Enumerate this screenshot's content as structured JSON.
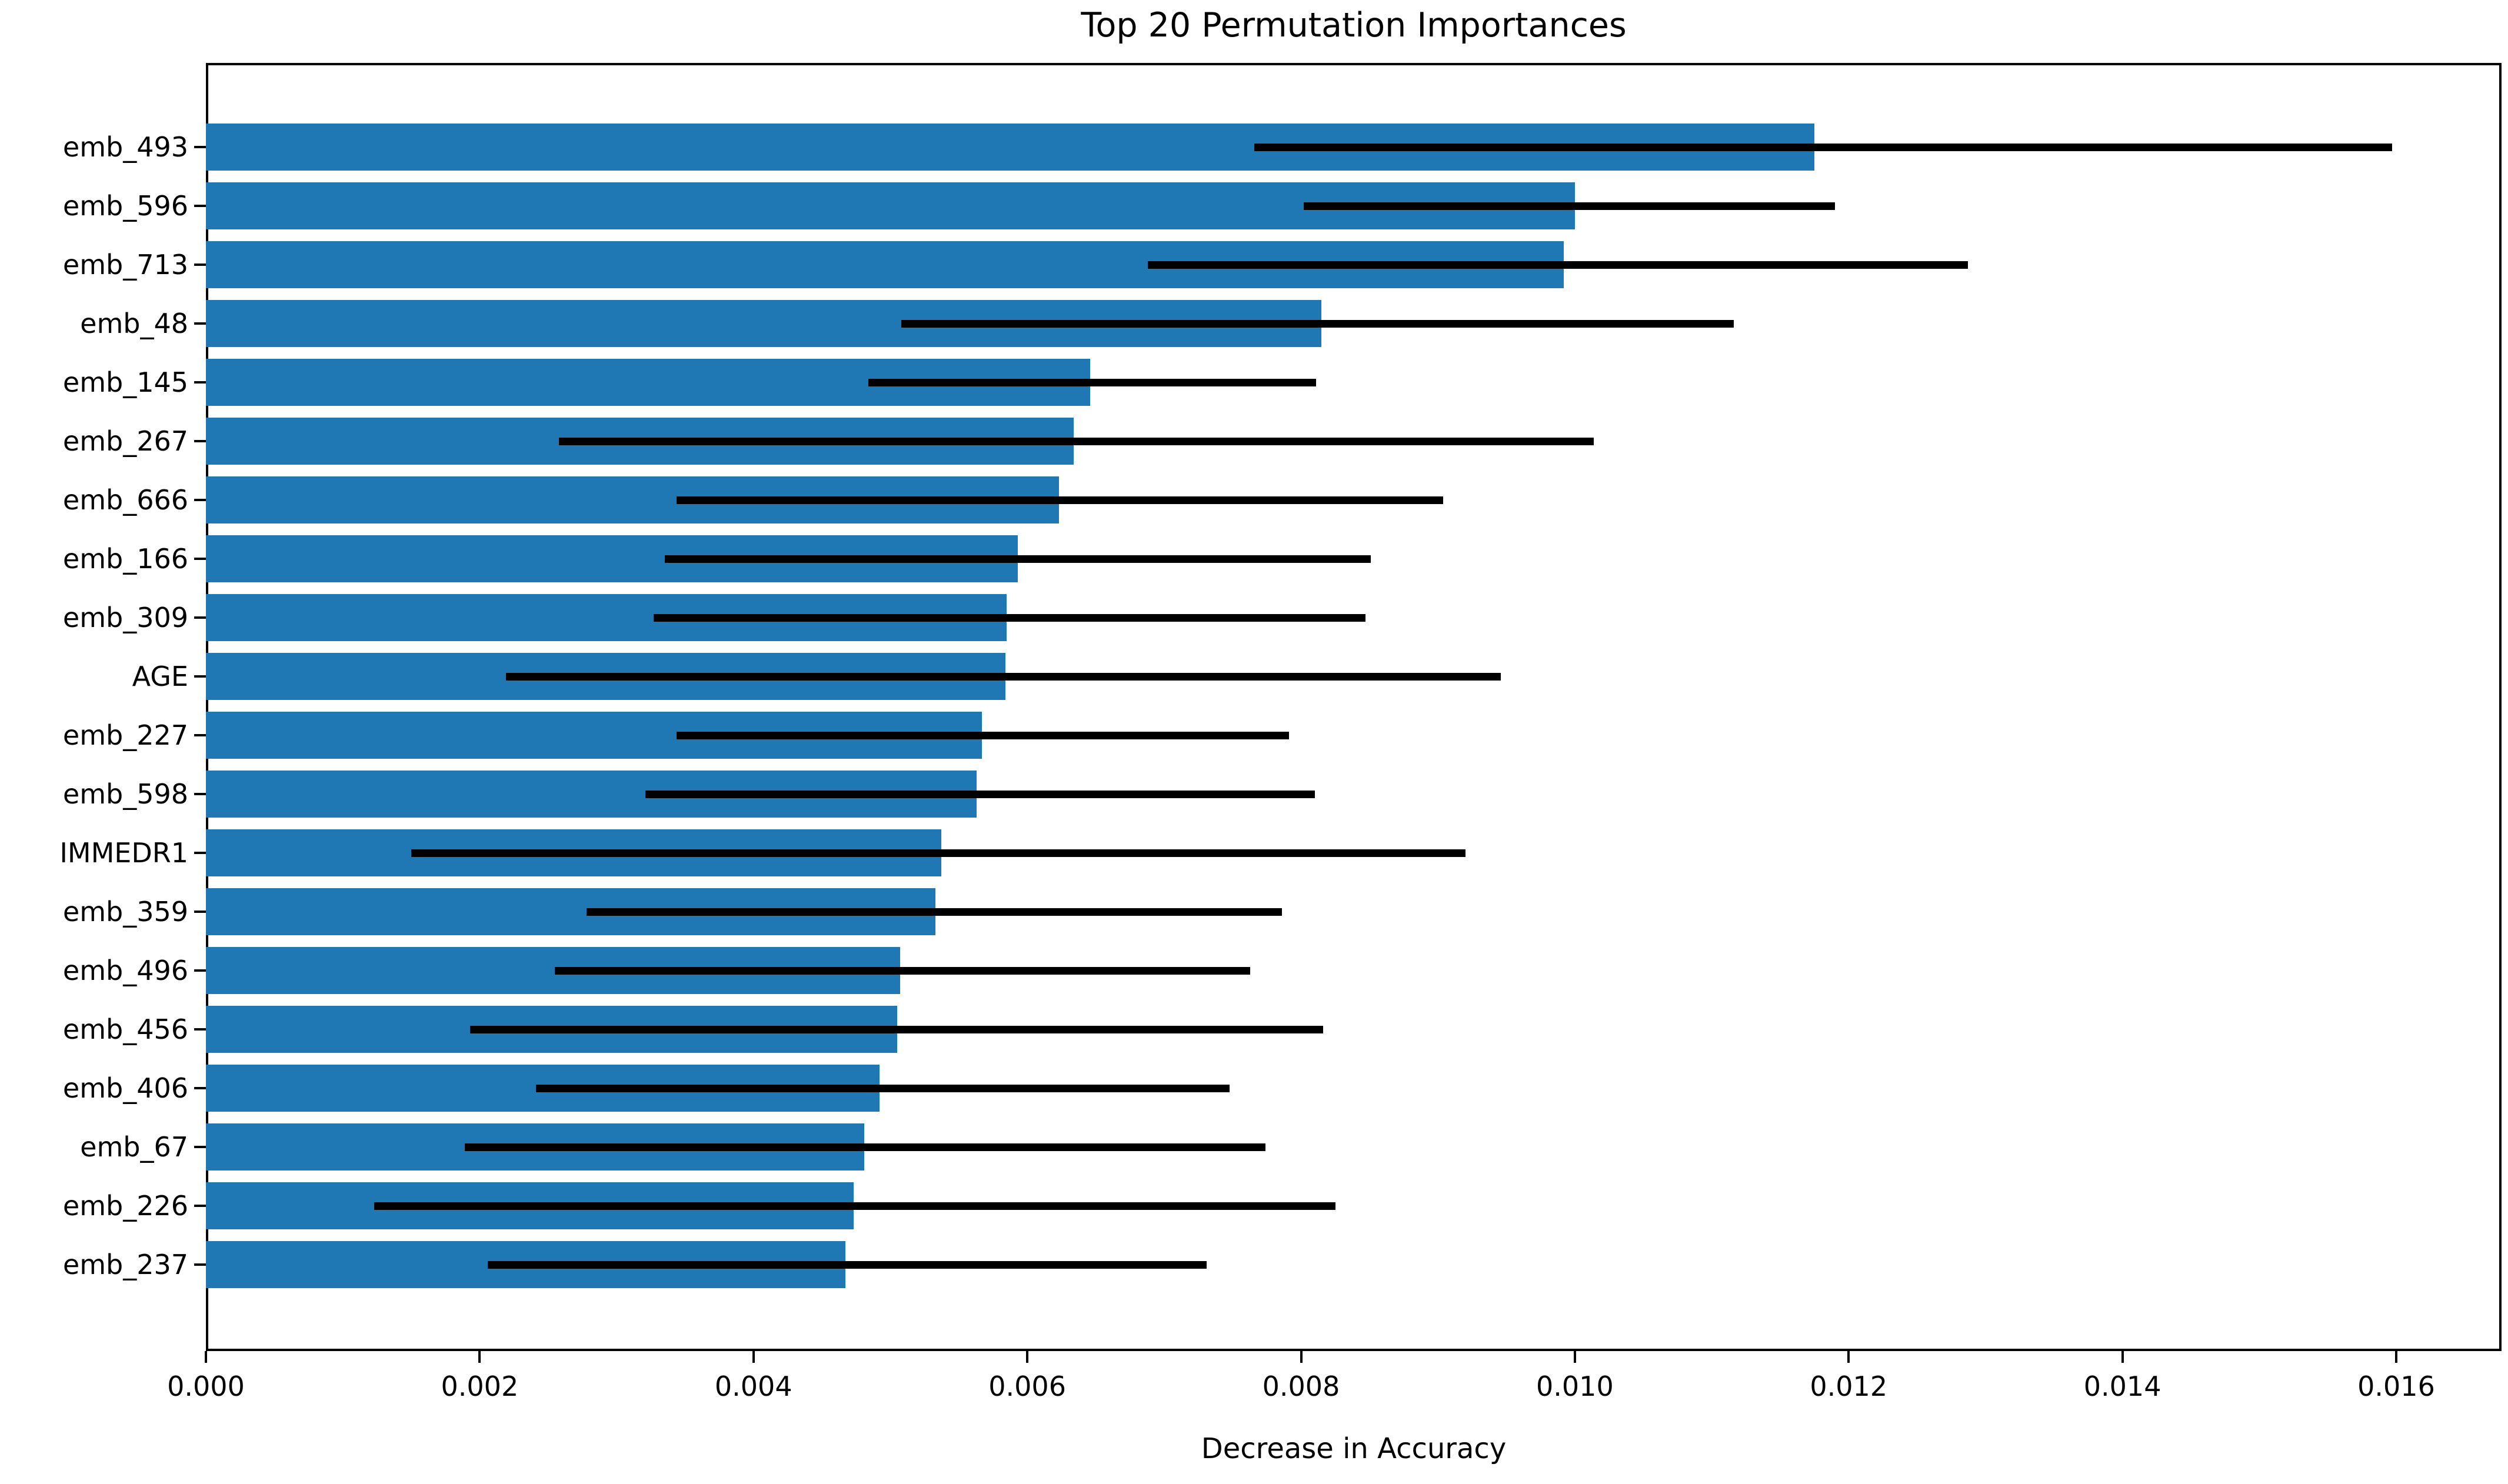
{
  "figure": {
    "title": "Top 20 Permutation Importances",
    "background_color": "#ffffff",
    "text_color": "#000000"
  },
  "chart_data": {
    "type": "bar",
    "orientation": "horizontal",
    "title": "Top 20 Permutation Importances",
    "xlabel": "Decrease in Accuracy",
    "ylabel": "",
    "categories": [
      "emb_493",
      "emb_596",
      "emb_713",
      "emb_48",
      "emb_145",
      "emb_267",
      "emb_666",
      "emb_166",
      "emb_309",
      "AGE",
      "emb_227",
      "emb_598",
      "IMMEDR1",
      "emb_359",
      "emb_496",
      "emb_456",
      "emb_406",
      "emb_67",
      "emb_226",
      "emb_237"
    ],
    "values": [
      0.01175,
      0.01,
      0.00992,
      0.00815,
      0.00646,
      0.00634,
      0.00623,
      0.00593,
      0.00585,
      0.00584,
      0.00567,
      0.00563,
      0.00537,
      0.00533,
      0.00507,
      0.00505,
      0.00492,
      0.00481,
      0.00473,
      0.00467
    ],
    "error_low": [
      0.00766,
      0.00802,
      0.00688,
      0.00508,
      0.00484,
      0.00258,
      0.00344,
      0.00335,
      0.00327,
      0.00219,
      0.00344,
      0.00321,
      0.0015,
      0.00278,
      0.00255,
      0.00193,
      0.00241,
      0.00189,
      0.00123,
      0.00206
    ],
    "error_high": [
      0.01597,
      0.0119,
      0.01287,
      0.01116,
      0.00811,
      0.01014,
      0.00904,
      0.00851,
      0.00847,
      0.00946,
      0.00791,
      0.0081,
      0.0092,
      0.00786,
      0.00763,
      0.00816,
      0.00748,
      0.00774,
      0.00825,
      0.00731
    ],
    "xlim": [
      0,
      0.0168
    ],
    "xticks": [
      0,
      0.002,
      0.004,
      0.006,
      0.008,
      0.01,
      0.012,
      0.014,
      0.016
    ],
    "xtick_labels": [
      "0.000",
      "0.002",
      "0.004",
      "0.006",
      "0.008",
      "0.010",
      "0.012",
      "0.014",
      "0.016"
    ],
    "bar_color": "#1f77b4",
    "error_bar_color": "#000000",
    "grid": false,
    "legend_position": "none"
  }
}
